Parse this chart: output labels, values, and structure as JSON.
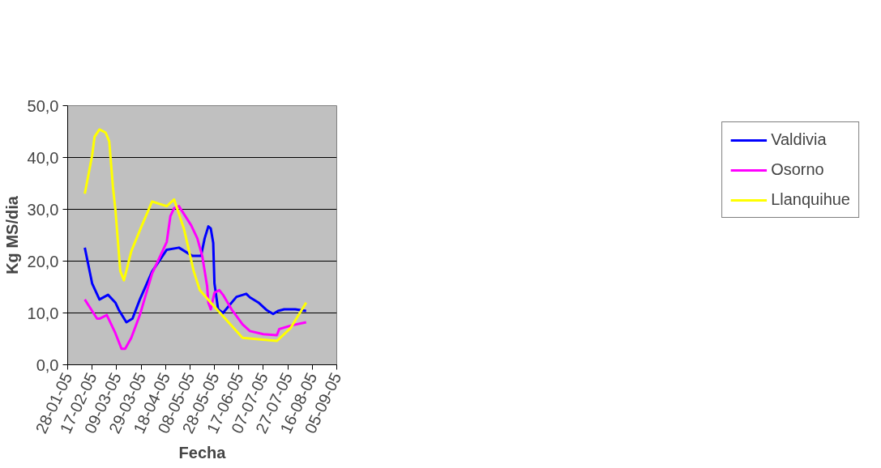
{
  "chart_data": {
    "type": "line",
    "xlabel": "Fecha",
    "ylabel": "Kg MS/dia",
    "xlim": [
      "2005-01-28",
      "2005-09-05"
    ],
    "xticks": [
      {
        "value": "2005-01-28",
        "label": "28-01-05"
      },
      {
        "value": "2005-02-17",
        "label": "17-02-05"
      },
      {
        "value": "2005-03-09",
        "label": "09-03-05"
      },
      {
        "value": "2005-03-29",
        "label": "29-03-05"
      },
      {
        "value": "2005-04-18",
        "label": "18-04-05"
      },
      {
        "value": "2005-05-08",
        "label": "08-05-05"
      },
      {
        "value": "2005-05-28",
        "label": "28-05-05"
      },
      {
        "value": "2005-06-17",
        "label": "17-06-05"
      },
      {
        "value": "2005-07-07",
        "label": "07-07-05"
      },
      {
        "value": "2005-07-27",
        "label": "27-07-05"
      },
      {
        "value": "2005-08-16",
        "label": "16-08-05"
      },
      {
        "value": "2005-09-05",
        "label": "05-09-05"
      }
    ],
    "ylim": [
      0,
      50
    ],
    "yticks": [
      {
        "value": 0,
        "label": "0,0"
      },
      {
        "value": 10,
        "label": "10,0"
      },
      {
        "value": 20,
        "label": "20,0"
      },
      {
        "value": 30,
        "label": "30,0"
      },
      {
        "value": 40,
        "label": "40,0"
      },
      {
        "value": 50,
        "label": "50,0"
      }
    ],
    "grid": "y",
    "legend": "right",
    "marker": "none",
    "line_style": "solid",
    "series": [
      {
        "name": "Valdivia",
        "color": "#0000ff",
        "x": [
          "2005-02-11",
          "2005-02-17",
          "2005-02-23",
          "2005-03-02",
          "2005-03-08",
          "2005-03-11",
          "2005-03-17",
          "2005-03-22",
          "2005-03-28",
          "2005-04-07",
          "2005-04-19",
          "2005-04-29",
          "2005-05-10",
          "2005-05-17",
          "2005-05-20",
          "2005-05-23",
          "2005-05-25",
          "2005-05-27",
          "2005-05-28",
          "2005-05-31",
          "2005-06-04",
          "2005-06-15",
          "2005-06-23",
          "2005-06-26",
          "2005-07-03",
          "2005-07-10",
          "2005-07-15",
          "2005-07-19",
          "2005-07-24",
          "2005-08-02",
          "2005-08-11"
        ],
        "values": [
          22.6,
          15.7,
          12.6,
          13.5,
          12,
          10.5,
          8.2,
          8.9,
          12.6,
          18,
          22.2,
          22.6,
          21,
          21,
          24.4,
          26.7,
          26.3,
          23.5,
          15.7,
          10.7,
          10,
          13.1,
          13.7,
          13,
          12,
          10.5,
          9.8,
          10.4,
          10.7,
          10.7,
          10.4
        ]
      },
      {
        "name": "Osorno",
        "color": "#ff00ff",
        "x": [
          "2005-02-11",
          "2005-02-21",
          "2005-02-23",
          "2005-03-01",
          "2005-03-08",
          "2005-03-13",
          "2005-03-16",
          "2005-03-21",
          "2005-03-28",
          "2005-04-07",
          "2005-04-19",
          "2005-04-22",
          "2005-04-25",
          "2005-04-29",
          "2005-05-09",
          "2005-05-14",
          "2005-05-18",
          "2005-05-22",
          "2005-05-23",
          "2005-05-25",
          "2005-05-28",
          "2005-06-01",
          "2005-06-04",
          "2005-06-11",
          "2005-06-20",
          "2005-06-26",
          "2005-07-07",
          "2005-07-18",
          "2005-07-20",
          "2005-07-30",
          "2005-08-11"
        ],
        "values": [
          12.6,
          8.9,
          8.9,
          9.6,
          6.1,
          3.1,
          3.1,
          5.2,
          9.6,
          17.6,
          23.7,
          28.7,
          30.2,
          30.6,
          26.9,
          24.4,
          21,
          15.2,
          12,
          10.7,
          13.9,
          14.4,
          13.5,
          10.7,
          7.8,
          6.5,
          5.9,
          5.7,
          6.9,
          7.6,
          8.2
        ]
      },
      {
        "name": "Llanquihue",
        "color": "#ffff00",
        "x": [
          "2005-02-11",
          "2005-02-17",
          "2005-02-19",
          "2005-02-23",
          "2005-02-28",
          "2005-03-03",
          "2005-03-06",
          "2005-03-08",
          "2005-03-12",
          "2005-03-15",
          "2005-03-21",
          "2005-03-29",
          "2005-04-07",
          "2005-04-19",
          "2005-04-25",
          "2005-05-03",
          "2005-05-11",
          "2005-05-16",
          "2005-05-25",
          "2005-06-20",
          "2005-07-18",
          "2005-07-29",
          "2005-08-11"
        ],
        "values": [
          33,
          40.4,
          44,
          45.4,
          44.8,
          43.1,
          34.3,
          30,
          18.1,
          16.3,
          21.9,
          26.5,
          31.5,
          30.6,
          31.9,
          26.3,
          18.1,
          14.4,
          12,
          5.2,
          4.6,
          7,
          12
        ]
      }
    ]
  }
}
